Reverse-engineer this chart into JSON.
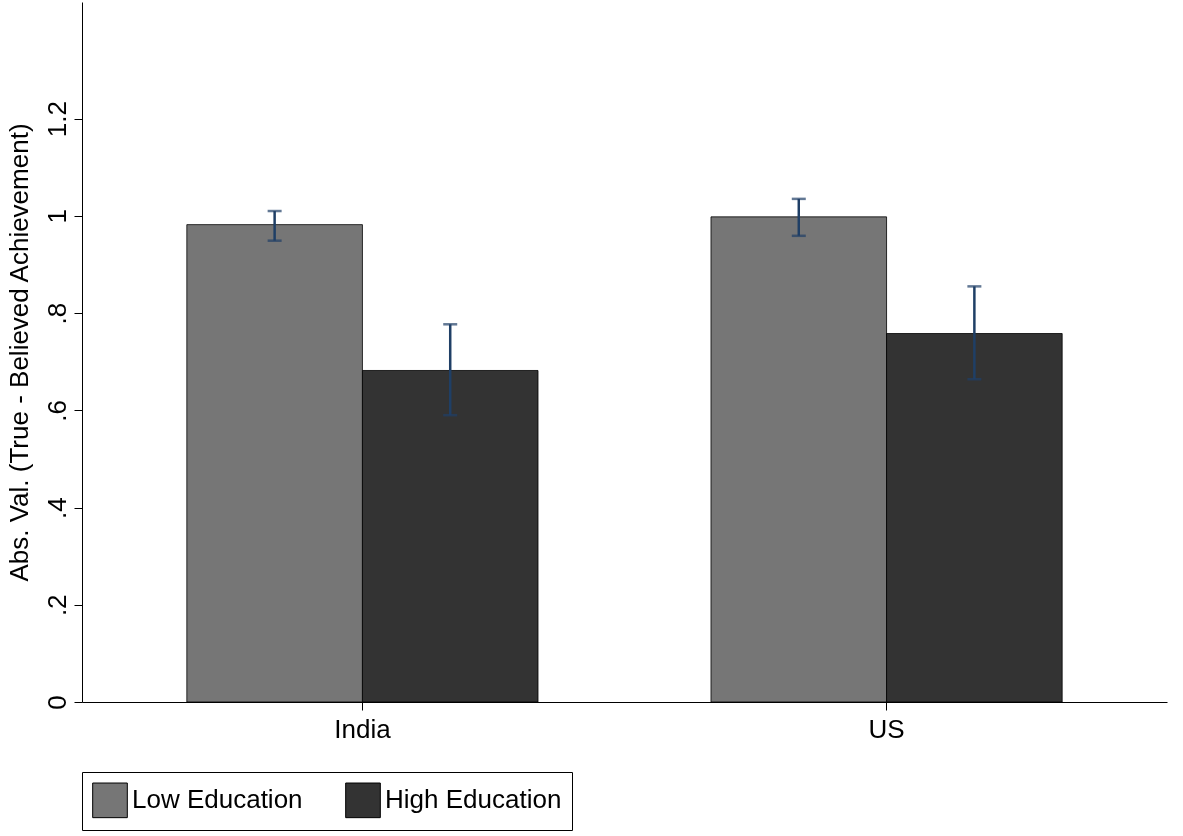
{
  "chart_data": {
    "type": "bar",
    "ylabel": "Abs. Val. (True - Believed Achievement)",
    "categories": [
      "India",
      "US"
    ],
    "series": [
      {
        "name": "Low Education",
        "color": "#767676",
        "values": [
          0.982,
          0.998
        ],
        "errors": [
          [
            0.949,
            1.01
          ],
          [
            0.959,
            1.035
          ]
        ]
      },
      {
        "name": "High Education",
        "color": "#333333",
        "values": [
          0.682,
          0.758
        ],
        "errors": [
          [
            0.59,
            0.777
          ],
          [
            0.664,
            0.855
          ]
        ]
      }
    ],
    "ylim": [
      0,
      1.44
    ],
    "yticks": [
      0,
      {
        "value": 0.2,
        "label": ".2"
      },
      {
        "value": 0.4,
        "label": ".4"
      },
      {
        "value": 0.6,
        "label": ".6"
      },
      {
        "value": 0.8,
        "label": ".8"
      },
      1,
      {
        "value": 1.2,
        "label": "1.2"
      }
    ],
    "grid": false,
    "legend": "bottom"
  }
}
